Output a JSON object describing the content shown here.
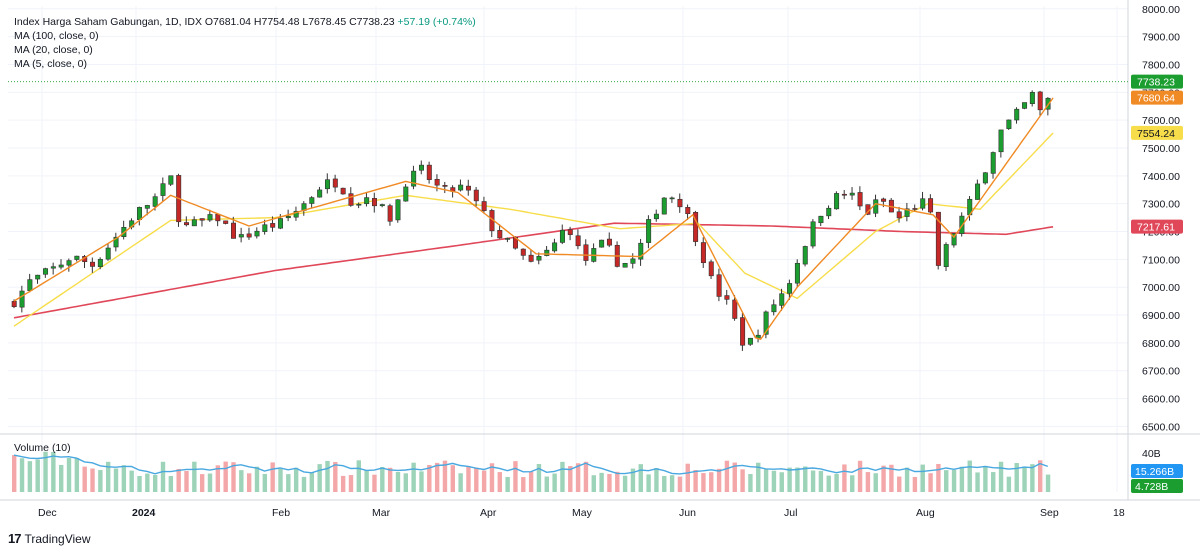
{
  "header": {
    "title": "Index Harga Saham Gabungan, 1D, IDX",
    "ohlc": "O7681.04  H7754.48  L7678.45  C7738.23",
    "change": "+57.19 (+0.74%)",
    "ma_lines": [
      "MA (100, close, 0)",
      "MA (20, close, 0)",
      "MA (5, close, 0)"
    ]
  },
  "volume_label": "Volume (10)",
  "branding": "TradingView",
  "colors": {
    "up": "#089981",
    "down": "#f23645",
    "up_fill": "#1b9e2f",
    "down_fill": "#c62828",
    "ma100": "#e0485a",
    "ma20": "#f7dd4a",
    "ma5": "#f08a24",
    "vol_up": "#9dd3b8",
    "vol_down": "#f4a7a8",
    "vol_ma": "#4aa8e0"
  },
  "chart_data": {
    "type": "candlestick",
    "price_axis": {
      "ticks": [
        8000,
        7900,
        7800,
        7700,
        7600,
        7500,
        7400,
        7300,
        7200,
        7100,
        7000,
        6900,
        6800,
        6700,
        6600,
        6500
      ],
      "range": [
        6480,
        8010
      ]
    },
    "time_axis": {
      "labels": [
        "Dec",
        "2024",
        "Feb",
        "Mar",
        "Apr",
        "May",
        "Jun",
        "Jul",
        "Aug",
        "Sep",
        "18"
      ]
    },
    "price_labels": [
      {
        "name": "close",
        "value": "7738.23",
        "color": "#1b9e2f"
      },
      {
        "name": "MA 5",
        "value": "7680.64",
        "color": "#f08a24"
      },
      {
        "name": "MA 20",
        "value": "7554.24",
        "color": "#f7dd4a"
      },
      {
        "name": "MA 100",
        "value": "7217.61",
        "color": "#e0485a"
      }
    ],
    "volume_axis": {
      "ticks": [
        "40B"
      ]
    },
    "volume_labels": [
      {
        "name": "volume MA",
        "value": "15.266B",
        "color": "#2196f3"
      },
      {
        "name": "volume",
        "value": "4.728B",
        "color": "#1b9e2f"
      }
    ],
    "close_path": [
      [
        0,
        6950
      ],
      [
        6,
        7020
      ],
      [
        14,
        7060
      ],
      [
        22,
        7110
      ],
      [
        30,
        7080
      ],
      [
        38,
        7170
      ],
      [
        46,
        7260
      ],
      [
        54,
        7320
      ],
      [
        60,
        7390
      ],
      [
        64,
        7210
      ],
      [
        70,
        7230
      ],
      [
        78,
        7250
      ],
      [
        86,
        7170
      ],
      [
        94,
        7210
      ],
      [
        102,
        7230
      ],
      [
        110,
        7290
      ],
      [
        118,
        7370
      ],
      [
        124,
        7380
      ],
      [
        130,
        7300
      ],
      [
        136,
        7330
      ],
      [
        144,
        7250
      ],
      [
        150,
        7380
      ],
      [
        156,
        7420
      ],
      [
        164,
        7340
      ],
      [
        172,
        7360
      ],
      [
        178,
        7290
      ],
      [
        184,
        7200
      ],
      [
        190,
        7150
      ],
      [
        198,
        7080
      ],
      [
        206,
        7140
      ],
      [
        212,
        7230
      ],
      [
        218,
        7090
      ],
      [
        226,
        7160
      ],
      [
        232,
        7080
      ],
      [
        238,
        7100
      ],
      [
        244,
        7250
      ],
      [
        250,
        7340
      ],
      [
        256,
        7300
      ],
      [
        262,
        7160
      ],
      [
        268,
        7000
      ],
      [
        274,
        6930
      ],
      [
        280,
        6780
      ],
      [
        284,
        6830
      ],
      [
        290,
        6930
      ],
      [
        296,
        7000
      ],
      [
        302,
        7140
      ],
      [
        308,
        7260
      ],
      [
        314,
        7320
      ],
      [
        320,
        7340
      ],
      [
        326,
        7260
      ],
      [
        332,
        7320
      ],
      [
        338,
        7240
      ],
      [
        344,
        7290
      ],
      [
        350,
        7310
      ],
      [
        354,
        7080
      ],
      [
        360,
        7200
      ],
      [
        366,
        7300
      ],
      [
        372,
        7430
      ],
      [
        378,
        7560
      ],
      [
        384,
        7620
      ],
      [
        390,
        7690
      ],
      [
        394,
        7610
      ],
      [
        398,
        7738
      ]
    ],
    "ma100_path": [
      [
        0,
        6890
      ],
      [
        100,
        7060
      ],
      [
        170,
        7150
      ],
      [
        230,
        7230
      ],
      [
        290,
        7220
      ],
      [
        340,
        7200
      ],
      [
        380,
        7190
      ],
      [
        398,
        7217
      ]
    ],
    "ma20_path": [
      [
        0,
        6860
      ],
      [
        60,
        7240
      ],
      [
        100,
        7250
      ],
      [
        150,
        7330
      ],
      [
        190,
        7280
      ],
      [
        232,
        7210
      ],
      [
        262,
        7230
      ],
      [
        280,
        7050
      ],
      [
        300,
        6960
      ],
      [
        330,
        7200
      ],
      [
        350,
        7300
      ],
      [
        370,
        7280
      ],
      [
        398,
        7554
      ]
    ],
    "ma5_path": [
      [
        0,
        6950
      ],
      [
        40,
        7180
      ],
      [
        60,
        7330
      ],
      [
        90,
        7220
      ],
      [
        150,
        7380
      ],
      [
        170,
        7340
      ],
      [
        200,
        7120
      ],
      [
        240,
        7110
      ],
      [
        260,
        7260
      ],
      [
        285,
        6800
      ],
      [
        300,
        7000
      ],
      [
        330,
        7300
      ],
      [
        352,
        7260
      ],
      [
        360,
        7180
      ],
      [
        398,
        7680
      ]
    ]
  }
}
